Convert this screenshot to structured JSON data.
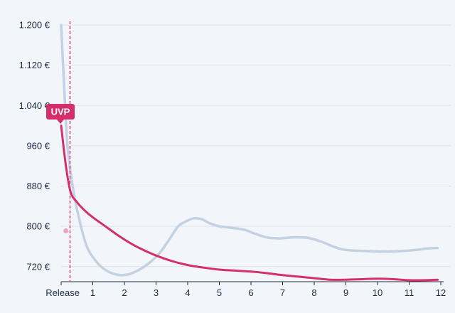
{
  "chart_data": {
    "type": "line",
    "x_tick_labels": [
      "Release",
      "1",
      "2",
      "3",
      "4",
      "5",
      "6",
      "7",
      "8",
      "9",
      "10",
      "11",
      "12"
    ],
    "xlim": [
      0,
      12
    ],
    "ylim": [
      690,
      1210
    ],
    "y_ticks": [
      720,
      800,
      880,
      960,
      1040,
      1120,
      1200
    ],
    "y_tick_labels": [
      "720 €",
      "800 €",
      "880 €",
      "960 €",
      "1.040 €",
      "1.120 €",
      "1.200 €"
    ],
    "grid": true,
    "series": [
      {
        "color": "#c4d1e2",
        "x": [
          0,
          0.1,
          0.2,
          0.35,
          0.55,
          0.8,
          1.05,
          1.3,
          1.6,
          1.9,
          2.2,
          2.5,
          2.8,
          3.1,
          3.4,
          3.7,
          3.95,
          4.2,
          4.45,
          4.7,
          5.0,
          5.4,
          5.8,
          6.1,
          6.5,
          6.9,
          7.3,
          7.8,
          8.2,
          8.6,
          8.9,
          9.2,
          9.6,
          10.0,
          10.4,
          10.8,
          11.2,
          11.6,
          11.9
        ],
        "y": [
          1200,
          1070,
          960,
          885,
          820,
          762,
          735,
          718,
          707,
          703,
          706,
          715,
          728,
          746,
          772,
          800,
          810,
          816,
          814,
          806,
          800,
          797,
          793,
          786,
          778,
          776,
          778,
          777,
          770,
          760,
          754,
          752,
          751,
          750,
          750,
          751,
          753,
          756,
          757
        ]
      },
      {
        "color": "#d42f6a",
        "x": [
          0,
          0.15,
          0.3,
          0.5,
          0.75,
          1.0,
          1.4,
          1.8,
          2.2,
          2.6,
          3.0,
          3.5,
          4.0,
          4.5,
          5.0,
          5.5,
          6.0,
          6.5,
          7.0,
          7.5,
          8.0,
          8.5,
          9.0,
          9.5,
          10.0,
          10.5,
          11.0,
          11.5,
          11.9
        ],
        "y": [
          1000,
          920,
          868,
          848,
          831,
          818,
          800,
          782,
          766,
          753,
          742,
          731,
          723,
          718,
          714,
          712,
          710,
          707,
          703,
          700,
          697,
          694,
          694,
          695,
          696,
          695,
          693,
          693,
          694
        ]
      }
    ],
    "marker": {
      "x": 0.28,
      "label": "UVP",
      "color": "#d42f6a"
    },
    "point": {
      "x": 0.15,
      "y": 791,
      "color": "#e8a7bd"
    }
  }
}
